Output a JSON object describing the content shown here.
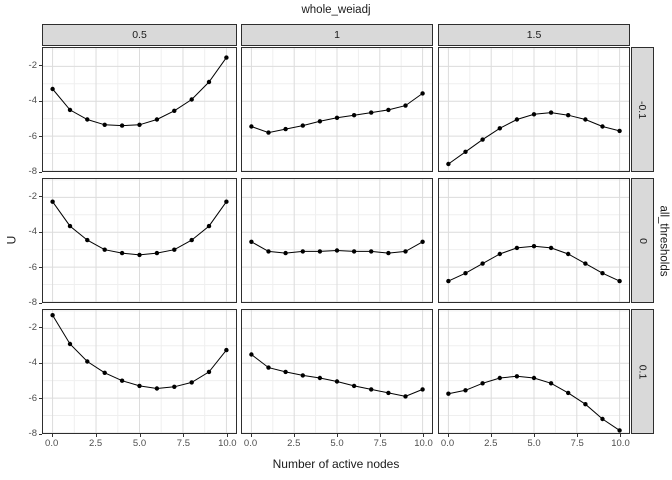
{
  "facets": {
    "col_variable": "whole_weiadj",
    "row_variable": "all_thresholds",
    "col_labels": [
      "0.5",
      "1",
      "1.5"
    ],
    "row_labels": [
      "-0.1",
      "0",
      "0.1"
    ]
  },
  "axes": {
    "x_label": "Number of active nodes",
    "y_label": "U",
    "x_ticks": [
      "0.0",
      "2.5",
      "5.0",
      "7.5",
      "10.0"
    ],
    "y_ticks": [
      "-2",
      "-4",
      "-6",
      "-8"
    ]
  },
  "colors": {
    "strip_fill": "#d9d9d9",
    "panel_border": "#2e2e2e",
    "grid_major": "#dcdcdc",
    "grid_minor": "#efefef",
    "series": "#000000",
    "tick_text": "#4d4d4d"
  },
  "chart_data": {
    "type": "line",
    "title": "whole_weiadj",
    "facet_col_variable": "whole_weiadj",
    "facet_row_variable": "all_thresholds",
    "xlabel": "Number of active nodes",
    "ylabel": "U",
    "x": [
      0,
      1,
      2,
      3,
      4,
      5,
      6,
      7,
      8,
      9,
      10
    ],
    "xlim": [
      -0.55,
      10.55
    ],
    "ylim": [
      -8.0,
      -0.95
    ],
    "x_major": [
      0,
      2.5,
      5,
      7.5,
      10
    ],
    "x_minor": [
      1.25,
      3.75,
      6.25,
      8.75
    ],
    "y_major": [
      -2,
      -4,
      -6,
      -8
    ],
    "y_minor": [
      -1,
      -3,
      -5,
      -7
    ],
    "grid": true,
    "legend": "none",
    "marker": "point",
    "panels": [
      {
        "row": "-0.1",
        "col": "0.5",
        "values": [
          -3.3,
          -4.5,
          -5.05,
          -5.35,
          -5.4,
          -5.35,
          -5.05,
          -4.55,
          -3.9,
          -2.9,
          -1.5
        ]
      },
      {
        "row": "-0.1",
        "col": "1",
        "values": [
          -5.45,
          -5.8,
          -5.6,
          -5.4,
          -5.15,
          -4.95,
          -4.8,
          -4.65,
          -4.5,
          -4.25,
          -3.55
        ]
      },
      {
        "row": "-0.1",
        "col": "1.5",
        "values": [
          -7.6,
          -6.9,
          -6.2,
          -5.55,
          -5.05,
          -4.75,
          -4.65,
          -4.8,
          -5.05,
          -5.45,
          -5.7
        ]
      },
      {
        "row": "0",
        "col": "0.5",
        "values": [
          -2.25,
          -3.65,
          -4.45,
          -5.0,
          -5.2,
          -5.3,
          -5.2,
          -5.0,
          -4.45,
          -3.65,
          -2.25
        ]
      },
      {
        "row": "0",
        "col": "1",
        "values": [
          -4.55,
          -5.1,
          -5.2,
          -5.1,
          -5.1,
          -5.05,
          -5.1,
          -5.1,
          -5.2,
          -5.1,
          -4.55
        ]
      },
      {
        "row": "0",
        "col": "1.5",
        "values": [
          -6.8,
          -6.35,
          -5.8,
          -5.25,
          -4.9,
          -4.8,
          -4.9,
          -5.25,
          -5.8,
          -6.35,
          -6.8
        ]
      },
      {
        "row": "0.1",
        "col": "0.5",
        "values": [
          -1.25,
          -2.9,
          -3.9,
          -4.55,
          -5.0,
          -5.3,
          -5.45,
          -5.35,
          -5.1,
          -4.5,
          -3.25
        ]
      },
      {
        "row": "0.1",
        "col": "1",
        "values": [
          -3.5,
          -4.25,
          -4.5,
          -4.7,
          -4.85,
          -5.05,
          -5.3,
          -5.5,
          -5.7,
          -5.9,
          -5.5
        ]
      },
      {
        "row": "0.1",
        "col": "1.5",
        "values": [
          -5.75,
          -5.55,
          -5.15,
          -4.85,
          -4.75,
          -4.85,
          -5.15,
          -5.7,
          -6.35,
          -7.2,
          -7.85
        ]
      }
    ]
  }
}
